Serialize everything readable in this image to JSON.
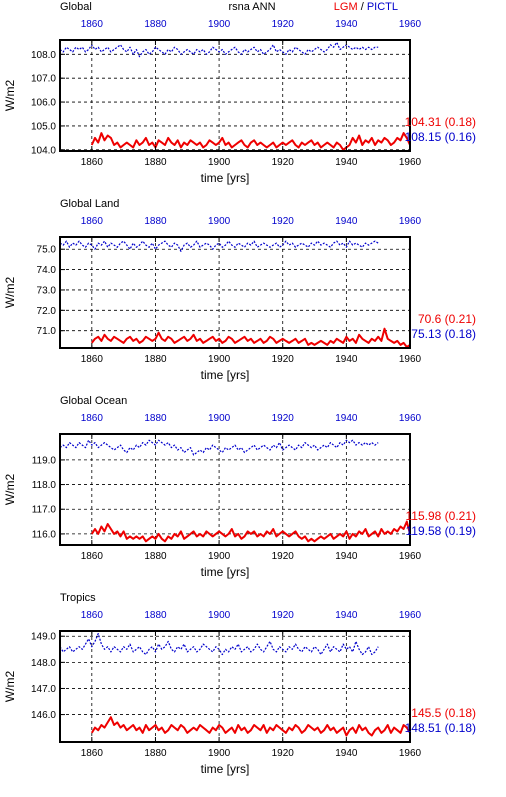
{
  "header": {
    "variable": "rsna ANN",
    "legend_lgm": "LGM",
    "legend_sep": " / ",
    "legend_pictl": "PICTL"
  },
  "colors": {
    "lgm": "#ee0000",
    "pictl": "#0000cc"
  },
  "chart_data": [
    {
      "type": "line",
      "title": "Global",
      "xlabel": "time [yrs]",
      "ylabel": "W/m2",
      "xlim": [
        1850,
        1960
      ],
      "ylim": [
        103.95,
        108.6
      ],
      "x_ticks": [
        1860,
        1880,
        1900,
        1920,
        1940,
        1960
      ],
      "x_tick_labels": [
        "1860",
        "1880",
        "1900",
        "1920",
        "1940",
        "1960"
      ],
      "y_ticks": [
        104.0,
        105.0,
        106.0,
        107.0,
        108.0
      ],
      "y_tick_labels": [
        "104.0",
        "105.0",
        "106.0",
        "107.0",
        "108.0"
      ],
      "grid": true,
      "stats": {
        "lgm": "104.31 (0.18)",
        "pictl": "108.15 (0.16)"
      },
      "series": [
        {
          "name": "LGM",
          "x_start": 1860,
          "x_end": 1960,
          "values": [
            104.2,
            104.5,
            104.3,
            104.7,
            104.4,
            104.6,
            104.5,
            104.2,
            104.3,
            104.1,
            104.2,
            104.3,
            104.2,
            104.1,
            104.4,
            104.2,
            104.3,
            104.5,
            104.2,
            104.3,
            104.1,
            104.4,
            104.3,
            104.2,
            104.5,
            104.3,
            104.2,
            104.4,
            104.1,
            104.3,
            104.2,
            104.4,
            104.3,
            104.2,
            104.3,
            104.1,
            104.2,
            104.4,
            104.3,
            104.2,
            104.3,
            104.5,
            104.2,
            104.3,
            104.1,
            104.2,
            104.3,
            104.4,
            104.2,
            104.1,
            104.3,
            104.4,
            104.2,
            104.3,
            104.2,
            104.1,
            104.2,
            104.3,
            104.1,
            104.2,
            104.3,
            104.2,
            104.3,
            104.4,
            104.2,
            104.1,
            104.3,
            104.2,
            104.3,
            104.4,
            104.2,
            104.3,
            104.1,
            104.2,
            104.3,
            104.2,
            104.1,
            104.3,
            104.2,
            104.0,
            104.1,
            104.2,
            104.5,
            104.3,
            104.6,
            104.2,
            104.4,
            104.3,
            104.5,
            104.2,
            104.4,
            104.3,
            104.5,
            104.4,
            104.2,
            104.3,
            104.5,
            104.4,
            104.7,
            104.5,
            104.2
          ]
        },
        {
          "name": "PICTL",
          "x_start": 1850,
          "x_end": 1950,
          "values": [
            108.2,
            108.1,
            108.3,
            108.2,
            108.1,
            108.3,
            108.2,
            108.3,
            108.1,
            108.2,
            108.4,
            108.2,
            108.3,
            108.1,
            108.2,
            108.3,
            108.1,
            108.2,
            108.3,
            108.4,
            108.2,
            108.1,
            108.3,
            108.0,
            108.2,
            107.9,
            108.1,
            108.2,
            108.0,
            108.1,
            108.3,
            108.2,
            108.1,
            108.0,
            108.2,
            108.1,
            108.3,
            108.2,
            108.0,
            108.1,
            108.2,
            108.1,
            108.0,
            108.2,
            108.1,
            108.2,
            108.0,
            108.1,
            108.3,
            108.2,
            108.1,
            108.2,
            108.0,
            108.1,
            108.2,
            108.3,
            108.1,
            108.0,
            108.2,
            108.1,
            108.2,
            108.3,
            108.1,
            108.2,
            108.0,
            108.1,
            108.2,
            108.4,
            108.1,
            108.2,
            108.1,
            108.0,
            108.2,
            108.1,
            108.3,
            108.2,
            108.1,
            108.0,
            108.2,
            108.1,
            108.2,
            108.3,
            108.2,
            108.1,
            108.2,
            108.4,
            108.3,
            108.5,
            108.2,
            108.3,
            108.4,
            108.3,
            108.2,
            108.3,
            108.2,
            108.3,
            108.2,
            108.3,
            108.2,
            108.3,
            108.3
          ]
        }
      ]
    },
    {
      "type": "line",
      "title": "Global Land",
      "xlabel": "time [yrs]",
      "ylabel": "W/m2",
      "xlim": [
        1850,
        1960
      ],
      "ylim": [
        70.15,
        75.6
      ],
      "x_ticks": [
        1860,
        1880,
        1900,
        1920,
        1940,
        1960
      ],
      "x_tick_labels": [
        "1860",
        "1880",
        "1900",
        "1920",
        "1940",
        "1960"
      ],
      "y_ticks": [
        71.0,
        72.0,
        73.0,
        74.0,
        75.0
      ],
      "y_tick_labels": [
        "71.0",
        "72.0",
        "73.0",
        "74.0",
        "75.0"
      ],
      "grid": true,
      "stats": {
        "lgm": "70.6 (0.21)",
        "pictl": "75.13 (0.18)"
      },
      "series": [
        {
          "name": "LGM",
          "x_start": 1860,
          "x_end": 1960,
          "values": [
            70.4,
            70.6,
            70.7,
            70.5,
            70.8,
            70.6,
            70.5,
            70.7,
            70.6,
            70.5,
            70.4,
            70.6,
            70.7,
            70.5,
            70.6,
            70.4,
            70.5,
            70.7,
            70.6,
            70.5,
            70.6,
            70.9,
            70.6,
            70.5,
            70.7,
            70.6,
            70.4,
            70.5,
            70.6,
            70.7,
            70.5,
            70.6,
            70.8,
            70.5,
            70.6,
            70.4,
            70.5,
            70.6,
            70.7,
            70.5,
            70.6,
            70.4,
            70.5,
            70.7,
            70.6,
            70.4,
            70.5,
            70.6,
            70.7,
            70.5,
            70.6,
            70.4,
            70.5,
            70.6,
            70.4,
            70.5,
            70.7,
            70.6,
            70.4,
            70.5,
            70.6,
            70.5,
            70.4,
            70.5,
            70.6,
            70.4,
            70.5,
            70.6,
            70.3,
            70.4,
            70.3,
            70.4,
            70.5,
            70.4,
            70.3,
            70.5,
            70.4,
            70.6,
            70.5,
            70.4,
            70.7,
            70.5,
            70.6,
            70.4,
            70.8,
            70.6,
            70.5,
            70.4,
            70.6,
            70.5,
            70.7,
            70.5,
            71.1,
            70.6,
            70.5,
            70.4,
            70.5,
            70.3,
            70.4,
            70.2,
            70.3
          ]
        },
        {
          "name": "PICTL",
          "x_start": 1850,
          "x_end": 1950,
          "values": [
            75.3,
            75.2,
            75.4,
            75.1,
            75.3,
            75.2,
            75.4,
            75.2,
            75.1,
            75.3,
            75.2,
            75.0,
            75.3,
            75.2,
            75.4,
            75.1,
            75.3,
            75.2,
            75.1,
            75.3,
            75.4,
            75.2,
            75.0,
            75.3,
            75.1,
            75.2,
            75.4,
            75.2,
            75.1,
            75.3,
            75.0,
            75.2,
            75.3,
            75.4,
            75.2,
            75.1,
            75.3,
            75.2,
            74.9,
            75.2,
            75.3,
            75.1,
            75.2,
            75.4,
            75.1,
            75.2,
            75.3,
            75.2,
            75.0,
            75.2,
            75.3,
            75.1,
            75.2,
            75.4,
            75.2,
            75.1,
            75.3,
            75.2,
            75.1,
            75.3,
            75.2,
            75.4,
            75.1,
            75.2,
            75.3,
            75.2,
            75.1,
            75.2,
            75.3,
            75.1,
            75.2,
            75.4,
            75.2,
            75.3,
            75.1,
            75.2,
            75.3,
            75.2,
            75.1,
            75.3,
            75.2,
            75.4,
            75.2,
            75.3,
            75.2,
            75.1,
            75.3,
            75.4,
            75.2,
            75.3,
            75.1,
            75.4,
            75.2,
            75.3,
            75.2,
            75.1,
            75.3,
            75.2,
            75.3,
            75.4,
            75.3
          ]
        }
      ]
    },
    {
      "type": "line",
      "title": "Global Ocean",
      "xlabel": "time [yrs]",
      "ylabel": "W/m2",
      "xlim": [
        1850,
        1960
      ],
      "ylim": [
        115.55,
        120.05
      ],
      "x_ticks": [
        1860,
        1880,
        1900,
        1920,
        1940,
        1960
      ],
      "x_tick_labels": [
        "1860",
        "1880",
        "1900",
        "1920",
        "1940",
        "1960"
      ],
      "y_ticks": [
        116.0,
        117.0,
        118.0,
        119.0
      ],
      "y_tick_labels": [
        "116.0",
        "117.0",
        "118.0",
        "119.0"
      ],
      "grid": true,
      "stats": {
        "lgm": "115.98 (0.21)",
        "pictl": "119.58 (0.19)"
      },
      "series": [
        {
          "name": "LGM",
          "x_start": 1860,
          "x_end": 1960,
          "values": [
            116.0,
            116.2,
            116.0,
            116.3,
            116.1,
            116.4,
            116.2,
            116.0,
            116.1,
            115.9,
            116.1,
            115.8,
            115.9,
            115.8,
            115.9,
            115.8,
            115.9,
            115.7,
            115.8,
            115.9,
            115.8,
            116.0,
            115.8,
            115.7,
            115.9,
            115.8,
            116.0,
            115.9,
            116.1,
            115.8,
            115.9,
            116.0,
            116.1,
            115.9,
            116.0,
            115.9,
            116.1,
            116.0,
            115.9,
            116.0,
            116.1,
            116.0,
            115.9,
            116.0,
            116.2,
            115.9,
            116.0,
            115.8,
            115.9,
            116.1,
            116.0,
            116.1,
            115.9,
            116.0,
            115.9,
            116.1,
            116.0,
            116.2,
            115.9,
            116.0,
            116.1,
            116.0,
            115.9,
            116.0,
            116.1,
            115.9,
            115.8,
            115.9,
            115.7,
            115.8,
            115.7,
            115.8,
            115.9,
            115.8,
            115.9,
            116.0,
            115.8,
            115.9,
            116.0,
            115.9,
            116.1,
            115.8,
            116.0,
            115.9,
            116.1,
            116.0,
            116.2,
            115.9,
            116.0,
            116.1,
            115.9,
            116.2,
            116.0,
            116.1,
            116.0,
            116.2,
            116.1,
            116.3,
            116.2,
            116.5,
            116.0
          ]
        },
        {
          "name": "PICTL",
          "x_start": 1850,
          "x_end": 1950,
          "values": [
            119.5,
            119.6,
            119.5,
            119.7,
            119.6,
            119.5,
            119.7,
            119.6,
            119.5,
            119.8,
            119.6,
            119.7,
            119.5,
            119.6,
            119.7,
            119.6,
            119.5,
            119.4,
            119.5,
            119.6,
            119.4,
            119.3,
            119.5,
            119.4,
            119.6,
            119.5,
            119.7,
            119.6,
            119.8,
            119.7,
            119.6,
            119.8,
            119.7,
            119.6,
            119.7,
            119.5,
            119.6,
            119.4,
            119.5,
            119.3,
            119.4,
            119.5,
            119.2,
            119.3,
            119.4,
            119.3,
            119.5,
            119.4,
            119.6,
            119.5,
            119.4,
            119.3,
            119.5,
            119.4,
            119.5,
            119.6,
            119.4,
            119.5,
            119.3,
            119.4,
            119.5,
            119.6,
            119.4,
            119.5,
            119.6,
            119.5,
            119.4,
            119.6,
            119.5,
            119.7,
            119.4,
            119.5,
            119.6,
            119.5,
            119.4,
            119.6,
            119.5,
            119.7,
            119.6,
            119.5,
            119.6,
            119.4,
            119.5,
            119.6,
            119.5,
            119.7,
            119.6,
            119.5,
            119.7,
            119.6,
            119.8,
            119.7,
            119.8,
            119.6,
            119.7,
            119.6,
            119.7,
            119.6,
            119.7,
            119.6,
            119.7
          ]
        }
      ]
    },
    {
      "type": "line",
      "title": "Tropics",
      "xlabel": "time [yrs]",
      "ylabel": "W/m2",
      "xlim": [
        1850,
        1960
      ],
      "ylim": [
        144.95,
        149.2
      ],
      "x_ticks": [
        1860,
        1880,
        1900,
        1920,
        1940,
        1960
      ],
      "x_tick_labels": [
        "1860",
        "1880",
        "1900",
        "1920",
        "1940",
        "1960"
      ],
      "y_ticks": [
        146.0,
        147.0,
        148.0,
        149.0
      ],
      "y_tick_labels": [
        "146.0",
        "147.0",
        "148.0",
        "149.0"
      ],
      "grid": true,
      "stats": {
        "lgm": "145.5 (0.18)",
        "pictl": "148.51 (0.18)"
      },
      "series": [
        {
          "name": "LGM",
          "x_start": 1860,
          "x_end": 1960,
          "values": [
            145.3,
            145.5,
            145.4,
            145.6,
            145.5,
            145.7,
            145.9,
            145.6,
            145.7,
            145.5,
            145.6,
            145.4,
            145.5,
            145.6,
            145.4,
            145.5,
            145.3,
            145.6,
            145.4,
            145.5,
            145.6,
            145.4,
            145.5,
            145.3,
            145.4,
            145.6,
            145.5,
            145.4,
            145.6,
            145.5,
            145.3,
            145.4,
            145.5,
            145.4,
            145.6,
            145.5,
            145.4,
            145.3,
            145.5,
            145.4,
            145.6,
            145.5,
            145.3,
            145.4,
            145.5,
            145.3,
            145.6,
            145.4,
            145.5,
            145.3,
            145.4,
            145.6,
            145.5,
            145.4,
            145.6,
            145.3,
            145.5,
            145.4,
            145.6,
            145.5,
            145.4,
            145.3,
            145.5,
            145.4,
            145.6,
            145.5,
            145.3,
            145.4,
            145.6,
            145.5,
            145.4,
            145.5,
            145.3,
            145.4,
            145.6,
            145.4,
            145.5,
            145.3,
            145.4,
            145.5,
            145.2,
            145.4,
            145.5,
            145.3,
            145.6,
            145.4,
            145.5,
            145.3,
            145.2,
            145.4,
            145.5,
            145.3,
            145.4,
            145.6,
            145.3,
            145.5,
            145.4,
            145.3,
            145.6,
            145.5,
            145.3
          ]
        },
        {
          "name": "PICTL",
          "x_start": 1850,
          "x_end": 1950,
          "values": [
            148.6,
            148.4,
            148.5,
            148.6,
            148.4,
            148.5,
            148.6,
            148.5,
            148.7,
            148.9,
            148.6,
            148.8,
            149.1,
            148.7,
            148.5,
            148.6,
            148.4,
            148.6,
            148.5,
            148.4,
            148.6,
            148.5,
            148.7,
            148.4,
            148.5,
            148.6,
            148.4,
            148.3,
            148.5,
            148.6,
            148.4,
            148.7,
            148.5,
            148.6,
            148.8,
            148.5,
            148.4,
            148.6,
            148.5,
            148.7,
            148.4,
            148.5,
            148.6,
            148.4,
            148.5,
            148.7,
            148.6,
            148.5,
            148.4,
            148.6,
            148.5,
            148.3,
            148.5,
            148.4,
            148.6,
            148.5,
            148.7,
            148.4,
            148.5,
            148.6,
            148.4,
            148.5,
            148.7,
            148.5,
            148.4,
            148.6,
            148.8,
            148.5,
            148.4,
            148.6,
            148.5,
            148.4,
            148.6,
            148.5,
            148.7,
            148.5,
            148.4,
            148.6,
            148.5,
            148.4,
            148.6,
            148.5,
            148.3,
            148.5,
            148.7,
            148.4,
            148.6,
            148.5,
            148.4,
            148.7,
            148.5,
            148.6,
            148.4,
            148.8,
            148.5,
            148.3,
            148.4,
            148.6,
            148.3,
            148.4,
            148.6
          ]
        }
      ]
    }
  ]
}
